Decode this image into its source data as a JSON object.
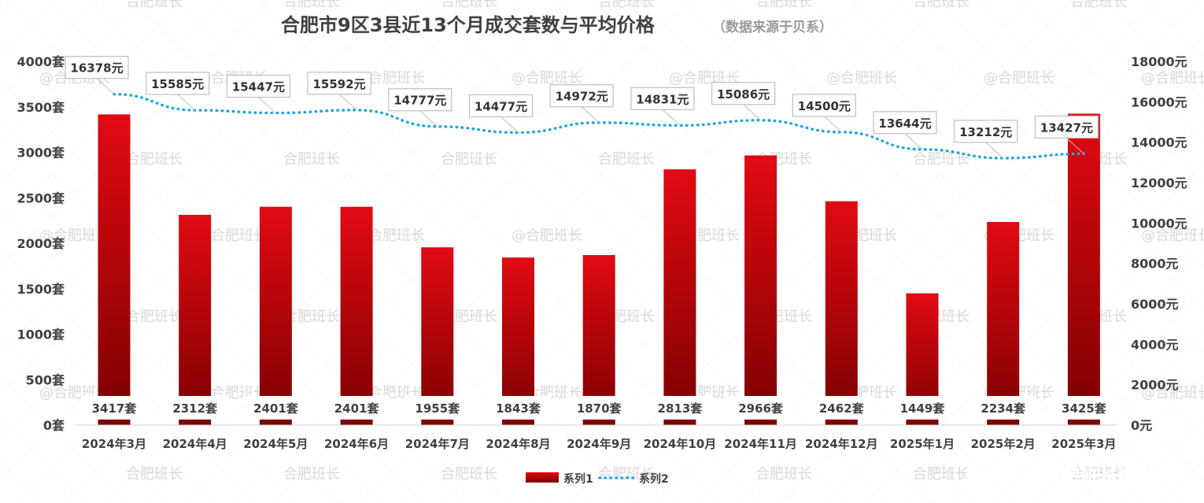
{
  "chart_data": {
    "type": "bar",
    "title": "合肥市9区3县近13个月成交套数与平均价格",
    "subtitle": "（数据来源于贝系）",
    "categories": [
      "2024年3月",
      "2024年4月",
      "2024年5月",
      "2024年6月",
      "2024年7月",
      "2024年8月",
      "2024年9月",
      "2024年10月",
      "2024年11月",
      "2024年12月",
      "2025年1月",
      "2025年2月",
      "2025年3月"
    ],
    "series": [
      {
        "name": "系列1",
        "type": "bar",
        "axis": "left",
        "values": [
          3417,
          2312,
          2401,
          2401,
          1955,
          1843,
          1870,
          2813,
          2966,
          2462,
          1449,
          2234,
          3425
        ],
        "labels": [
          "3417套",
          "2312套",
          "2401套",
          "2401套",
          "1955套",
          "1843套",
          "1870套",
          "2813套",
          "2966套",
          "2462套",
          "1449套",
          "2234套",
          "3425套"
        ]
      },
      {
        "name": "系列2",
        "type": "line",
        "axis": "right",
        "style": "dotted",
        "values": [
          16378,
          15585,
          15447,
          15592,
          14777,
          14477,
          14972,
          14831,
          15086,
          14500,
          13644,
          13212,
          13427
        ],
        "labels": [
          "16378元",
          "15585元",
          "15447元",
          "15592元",
          "14777元",
          "14477元",
          "14972元",
          "14831元",
          "15086元",
          "14500元",
          "13644元",
          "13212元",
          "13427元"
        ]
      }
    ],
    "ylim_left": [
      0,
      4000
    ],
    "ylim_right": [
      0,
      18000
    ],
    "yticks_left": [
      "0套",
      "500套",
      "1000套",
      "1500套",
      "2000套",
      "2500套",
      "3000套",
      "3500套",
      "4000套"
    ],
    "yticks_right": [
      "0元",
      "2000元",
      "4000元",
      "6000元",
      "8000元",
      "10000元",
      "12000元",
      "14000元",
      "16000元",
      "18000元"
    ],
    "legend": "bottom-center",
    "grid": false,
    "colors": {
      "bar_top": "#e00a12",
      "bar_bottom": "#7a0000",
      "line": "#1fa8dc",
      "label_box_border": "#bfbfbf"
    }
  },
  "watermark": "@合肥班长",
  "watermark_alt": "合肥班长",
  "source": "搜狐号@合肥班长搜狐号"
}
